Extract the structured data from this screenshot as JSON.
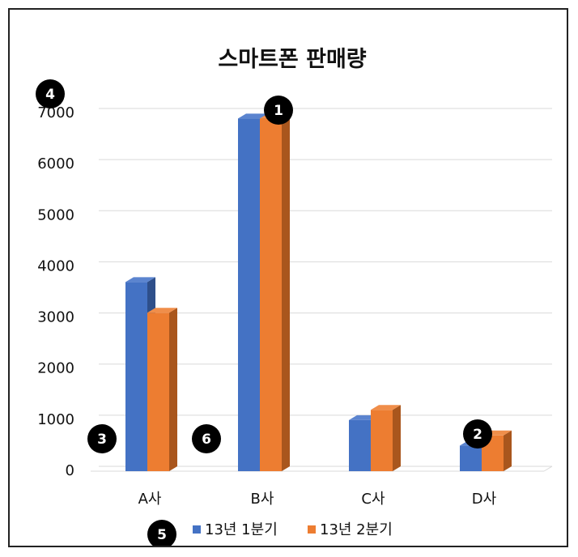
{
  "chart_data": {
    "type": "bar",
    "title": "스마트폰 판매량",
    "categories": [
      "A사",
      "B사",
      "C사",
      "D사"
    ],
    "series": [
      {
        "name": "13년 1분기",
        "values": [
          3700,
          6900,
          1000,
          500
        ],
        "color": "#4472C4",
        "side_color": "#2E4F8A",
        "top_color": "#5B84CF"
      },
      {
        "name": "13년 2분기",
        "values": [
          3100,
          6900,
          1200,
          700
        ],
        "color": "#ED7D31",
        "side_color": "#A9561D",
        "top_color": "#F08E4A"
      }
    ],
    "ylim": [
      0,
      7000
    ],
    "yticks": [
      "0",
      "1000",
      "2000",
      "3000",
      "4000",
      "5000",
      "6000",
      "7000"
    ],
    "grid": true,
    "legend_position": "bottom",
    "xlabel": "",
    "ylabel": ""
  },
  "annotations": [
    "1",
    "2",
    "3",
    "4",
    "5",
    "6"
  ],
  "colors": {
    "badge": "#000000",
    "grid": "#D9D9D9"
  }
}
